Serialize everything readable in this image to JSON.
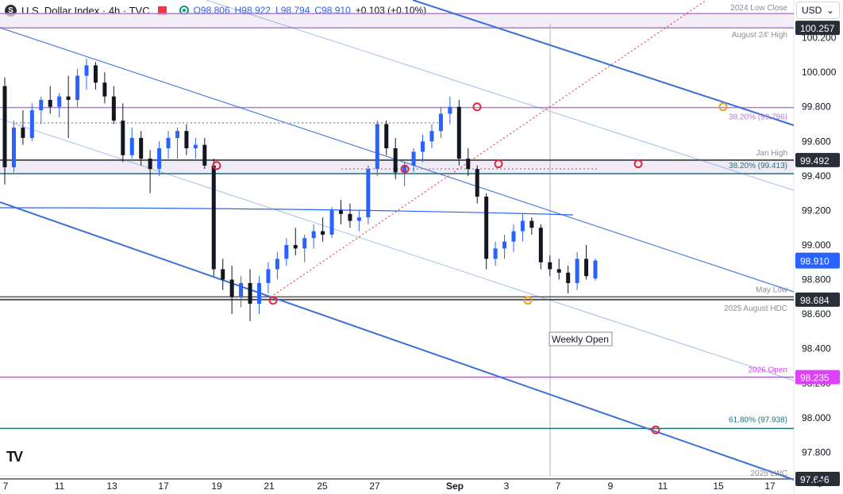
{
  "header": {
    "symbol_icon": "S",
    "title": "U.S. Dollar Index · 4h · TVC",
    "open": "O98.806",
    "high": "H98.922",
    "low": "L98.794",
    "close": "C98.910",
    "change": "+0.103 (+0.10%)",
    "currency": "USD",
    "currency_caret_icon": "chevron-down-icon"
  },
  "colors": {
    "up": "#2962ff",
    "down": "#131722",
    "channel": "#3a6fd8",
    "purple": "#b37ad6",
    "magenta": "#e040fb",
    "teal": "#20707e",
    "marker_red": "#e2263b",
    "marker_orange": "#f09a2b"
  },
  "chart_data": {
    "type": "candlestick",
    "title": "U.S. Dollar Index · 4h · TVC",
    "ylim": [
      97.6,
      100.4
    ],
    "y_ticks": [
      "100.200",
      "100.000",
      "99.800",
      "99.600",
      "99.400",
      "99.200",
      "99.000",
      "98.800",
      "98.600",
      "98.400",
      "98.200",
      "98.000",
      "97.800"
    ],
    "x_ticks": [
      "7",
      "11",
      "13",
      "17",
      "19",
      "21",
      "25",
      "27",
      "Sep",
      "3",
      "7",
      "9",
      "11",
      "15",
      "17"
    ],
    "last_price": "98.910",
    "price_labels": [
      {
        "value": 100.257,
        "text": "100.257",
        "color": "#2a2e39"
      },
      {
        "value": 99.492,
        "text": "99.492",
        "color": "#2a2e39"
      },
      {
        "value": 98.684,
        "text": "98.684",
        "color": "#2a2e39"
      },
      {
        "value": 98.235,
        "text": "98.235",
        "color": "#e040fb"
      },
      {
        "value": 97.646,
        "text": "97.646",
        "color": "#2a2e39"
      }
    ],
    "horizontal_levels": [
      {
        "value": 100.34,
        "label": "2024 Low Close",
        "color": "#b37ad6"
      },
      {
        "value": 100.257,
        "label": "August 24' High",
        "color": "#b37ad6"
      },
      {
        "value": 99.796,
        "label": "38.20% (99.796)",
        "color": "#b37ad6"
      },
      {
        "value": 99.492,
        "label": "Jan High",
        "color": "#555"
      },
      {
        "value": 99.413,
        "label": "38.20% (99.413)",
        "color": "#20707e"
      },
      {
        "value": 98.7,
        "label": "May Low",
        "color": "#555"
      },
      {
        "value": 98.684,
        "label": "2025 August HDC",
        "color": "#555"
      },
      {
        "value": 98.235,
        "label": "2026 Open",
        "color": "#e040fb"
      },
      {
        "value": 97.938,
        "label": "61.80% (97.938)",
        "color": "#20707e"
      },
      {
        "value": 97.646,
        "label": "2025 LWC",
        "color": "#555"
      }
    ],
    "annotations": [
      "Weekly Open"
    ],
    "candles": [
      [
        99.92,
        99.97,
        99.35,
        99.45
      ],
      [
        99.45,
        99.72,
        99.42,
        99.68
      ],
      [
        99.68,
        99.78,
        99.58,
        99.62
      ],
      [
        99.62,
        99.82,
        99.6,
        99.78
      ],
      [
        99.78,
        99.86,
        99.7,
        99.84
      ],
      [
        99.84,
        99.92,
        99.76,
        99.8
      ],
      [
        99.8,
        99.88,
        99.74,
        99.86
      ],
      [
        99.86,
        99.98,
        99.62,
        99.84
      ],
      [
        99.84,
        100.02,
        99.8,
        99.98
      ],
      [
        99.98,
        100.08,
        99.9,
        100.04
      ],
      [
        100.04,
        100.06,
        99.9,
        99.94
      ],
      [
        99.94,
        100.0,
        99.82,
        99.86
      ],
      [
        99.86,
        99.92,
        99.7,
        99.72
      ],
      [
        99.72,
        99.82,
        99.48,
        99.52
      ],
      [
        99.52,
        99.68,
        99.5,
        99.62
      ],
      [
        99.62,
        99.66,
        99.46,
        99.5
      ],
      [
        99.5,
        99.55,
        99.3,
        99.44
      ],
      [
        99.44,
        99.6,
        99.4,
        99.56
      ],
      [
        99.56,
        99.66,
        99.5,
        99.62
      ],
      [
        99.62,
        99.68,
        99.5,
        99.66
      ],
      [
        99.66,
        99.7,
        99.52,
        99.56
      ],
      [
        99.56,
        99.62,
        99.5,
        99.58
      ],
      [
        99.58,
        99.62,
        99.44,
        99.46
      ],
      [
        99.46,
        99.5,
        98.82,
        98.86
      ],
      [
        98.86,
        98.92,
        98.74,
        98.8
      ],
      [
        98.8,
        98.88,
        98.6,
        98.7
      ],
      [
        98.7,
        98.82,
        98.64,
        98.78
      ],
      [
        98.78,
        98.86,
        98.56,
        98.66
      ],
      [
        98.66,
        98.82,
        98.6,
        98.78
      ],
      [
        98.78,
        98.9,
        98.72,
        98.86
      ],
      [
        98.86,
        98.96,
        98.8,
        98.92
      ],
      [
        98.92,
        99.04,
        98.88,
        99.0
      ],
      [
        99.0,
        99.1,
        98.94,
        98.98
      ],
      [
        98.98,
        99.06,
        98.9,
        99.04
      ],
      [
        99.04,
        99.12,
        98.98,
        99.08
      ],
      [
        99.08,
        99.16,
        99.02,
        99.06
      ],
      [
        99.06,
        99.22,
        99.04,
        99.2
      ],
      [
        99.2,
        99.26,
        99.12,
        99.18
      ],
      [
        99.18,
        99.24,
        99.1,
        99.14
      ],
      [
        99.14,
        99.2,
        99.08,
        99.16
      ],
      [
        99.16,
        99.46,
        99.12,
        99.44
      ],
      [
        99.44,
        99.72,
        99.4,
        99.7
      ],
      [
        99.7,
        99.72,
        99.52,
        99.56
      ],
      [
        99.56,
        99.62,
        99.38,
        99.42
      ],
      [
        99.42,
        99.48,
        99.34,
        99.46
      ],
      [
        99.46,
        99.56,
        99.42,
        99.54
      ],
      [
        99.54,
        99.64,
        99.48,
        99.6
      ],
      [
        99.6,
        99.7,
        99.56,
        99.66
      ],
      [
        99.66,
        99.8,
        99.62,
        99.76
      ],
      [
        99.76,
        99.86,
        99.7,
        99.8
      ],
      [
        99.8,
        99.84,
        99.46,
        99.5
      ],
      [
        99.5,
        99.56,
        99.4,
        99.44
      ],
      [
        99.44,
        99.46,
        99.24,
        99.28
      ],
      [
        99.28,
        99.3,
        98.86,
        98.92
      ],
      [
        98.92,
        99.02,
        98.88,
        98.98
      ],
      [
        98.98,
        99.06,
        98.92,
        99.02
      ],
      [
        99.02,
        99.12,
        98.96,
        99.08
      ],
      [
        99.08,
        99.18,
        99.02,
        99.14
      ],
      [
        99.14,
        99.16,
        99.06,
        99.1
      ],
      [
        99.1,
        99.12,
        98.86,
        98.9
      ],
      [
        98.9,
        98.94,
        98.82,
        98.86
      ],
      [
        98.86,
        98.92,
        98.8,
        98.84
      ],
      [
        98.84,
        98.88,
        98.72,
        98.78
      ],
      [
        98.78,
        98.96,
        98.74,
        98.92
      ],
      [
        98.92,
        99.0,
        98.8,
        98.82
      ],
      [
        98.806,
        98.922,
        98.794,
        98.91
      ]
    ]
  },
  "footer": {
    "logo": "TV",
    "settings_icon": "gear-icon"
  }
}
